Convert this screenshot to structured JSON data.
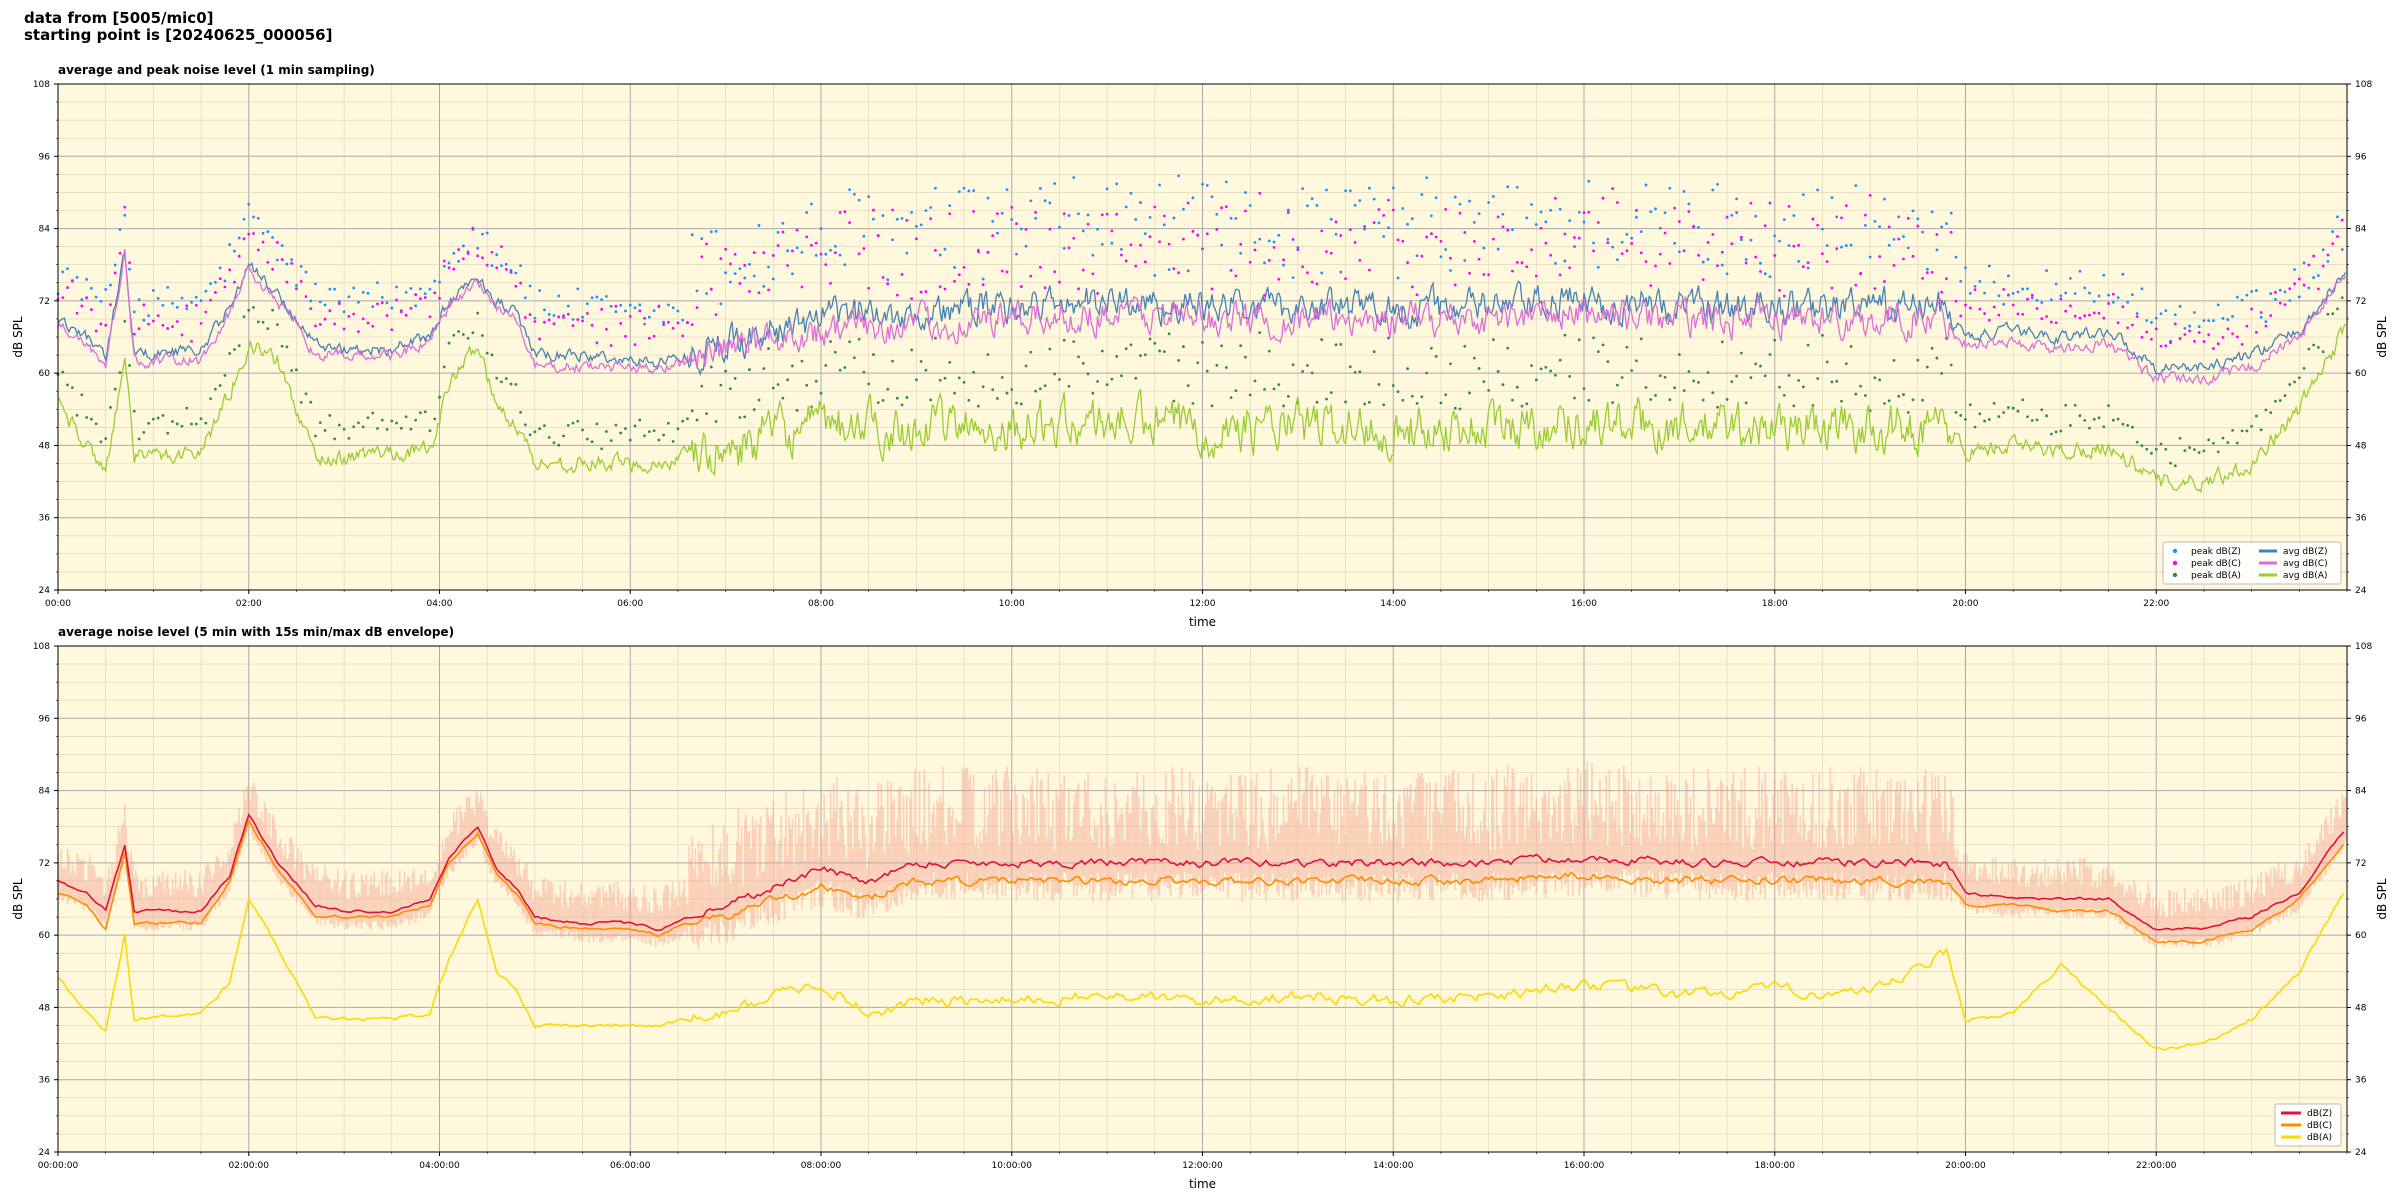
{
  "header": {
    "line1": "data from [5005/mic0]",
    "line2": "starting point is [20240625_000056]"
  },
  "colors": {
    "plot_bg": "#fff8dc",
    "grid_major": "#aaaaaa",
    "grid_minor": "#d9d2b8",
    "avg_z": "#4682b4",
    "avg_c": "#da70d6",
    "avg_a": "#9acd32",
    "peak_z": "#1e90ff",
    "peak_c": "#ff00ff",
    "peak_a": "#2e8b57",
    "env": "#f4a090",
    "z": "#dc143c",
    "c": "#ff8c00",
    "a": "#ffd700"
  },
  "chart_data": [
    {
      "type": "line",
      "title": "average and peak noise level (1 min sampling)",
      "xlabel": "time",
      "ylabel": "dB SPL",
      "xlim": [
        0,
        24
      ],
      "ylim": [
        24,
        108
      ],
      "yticks": [
        "24",
        "36",
        "48",
        "60",
        "72",
        "84",
        "96",
        "108"
      ],
      "xticks": [
        "00:00",
        "02:00",
        "04:00",
        "06:00",
        "08:00",
        "10:00",
        "12:00",
        "14:00",
        "16:00",
        "18:00",
        "20:00",
        "22:00"
      ],
      "grid": true,
      "legend_position": "bottom-right",
      "legend": [
        {
          "label": "peak dB(Z)",
          "kind": "dot",
          "color_key": "peak_z"
        },
        {
          "label": "peak dB(C)",
          "kind": "dot",
          "color_key": "peak_c"
        },
        {
          "label": "peak dB(A)",
          "kind": "dot",
          "color_key": "peak_a"
        },
        {
          "label": "avg dB(Z)",
          "kind": "line",
          "color_key": "avg_z"
        },
        {
          "label": "avg dB(C)",
          "kind": "line",
          "color_key": "avg_c"
        },
        {
          "label": "avg dB(A)",
          "kind": "line",
          "color_key": "avg_a"
        }
      ],
      "profile_hours": [
        0,
        0.3,
        0.5,
        0.7,
        0.8,
        1.5,
        1.8,
        2.0,
        2.3,
        2.7,
        3.0,
        3.5,
        3.9,
        4.1,
        4.4,
        4.6,
        4.8,
        5.0,
        5.5,
        6.0,
        6.3,
        6.6,
        7.0,
        7.5,
        8.0,
        8.5,
        9.0,
        10.0,
        11.0,
        12.0,
        13.0,
        14.0,
        15.0,
        16.0,
        17.0,
        18.0,
        19.0,
        19.8,
        20.0,
        20.5,
        21.0,
        21.5,
        22.0,
        22.5,
        23.0,
        23.5,
        24.0
      ],
      "series": [
        {
          "name": "avg dB(Z)",
          "color_key": "avg_z",
          "values": [
            69,
            66,
            63,
            80,
            63,
            64,
            71,
            78,
            73,
            65,
            64,
            64,
            66,
            72,
            76,
            72,
            70,
            63,
            63,
            62,
            62,
            63,
            65,
            67,
            69,
            70,
            70,
            71,
            72,
            71,
            71,
            71,
            71,
            72,
            71,
            71,
            71,
            71,
            66,
            67,
            66,
            67,
            61,
            61,
            63,
            67,
            77
          ]
        },
        {
          "name": "avg dB(C)",
          "color_key": "avg_c",
          "values": [
            68,
            65,
            61,
            80,
            62,
            62,
            70,
            77,
            72,
            63,
            63,
            63,
            65,
            71,
            75,
            71,
            69,
            61,
            61,
            61,
            61,
            62,
            64,
            66,
            67,
            68,
            68,
            69,
            70,
            69,
            69,
            69,
            69,
            70,
            69,
            69,
            69,
            69,
            65,
            65,
            64,
            65,
            59,
            59,
            61,
            66,
            77
          ]
        },
        {
          "name": "avg dB(A)",
          "color_key": "avg_a",
          "values": [
            55,
            48,
            44,
            62,
            46,
            47,
            57,
            65,
            62,
            46,
            46,
            47,
            47,
            58,
            65,
            54,
            52,
            45,
            45,
            45,
            45,
            46,
            47,
            50,
            51,
            51,
            51,
            51,
            52,
            51,
            51,
            51,
            51,
            52,
            51,
            51,
            51,
            51,
            47,
            48,
            47,
            48,
            42,
            42,
            45,
            54,
            68
          ]
        }
      ],
      "peak_series": [
        {
          "name": "peak dB(Z)",
          "color_key": "peak_z",
          "offset_db": 4
        },
        {
          "name": "peak dB(C)",
          "color_key": "peak_c",
          "offset_db": 3
        },
        {
          "name": "peak dB(A)",
          "color_key": "peak_a",
          "offset_db": 2
        }
      ]
    },
    {
      "type": "line",
      "title": "average noise level (5 min with 15s min/max dB envelope)",
      "xlabel": "time",
      "ylabel": "dB SPL",
      "xlim": [
        0,
        24
      ],
      "ylim": [
        24,
        108
      ],
      "yticks": [
        "24",
        "36",
        "48",
        "60",
        "72",
        "84",
        "96",
        "108"
      ],
      "xticks": [
        "00:00:00",
        "02:00:00",
        "04:00:00",
        "06:00:00",
        "08:00:00",
        "10:00:00",
        "12:00:00",
        "14:00:00",
        "16:00:00",
        "18:00:00",
        "20:00:00",
        "22:00:00"
      ],
      "grid": true,
      "legend_position": "bottom-right",
      "legend": [
        {
          "label": "dB(Z)",
          "kind": "line",
          "color_key": "z"
        },
        {
          "label": "dB(C)",
          "kind": "line",
          "color_key": "c"
        },
        {
          "label": "dB(A)",
          "kind": "line",
          "color_key": "a"
        }
      ],
      "profile_hours": [
        0,
        0.3,
        0.5,
        0.7,
        0.8,
        1.5,
        1.8,
        2.0,
        2.3,
        2.7,
        3.0,
        3.5,
        3.9,
        4.1,
        4.4,
        4.6,
        4.8,
        5.0,
        5.5,
        6.0,
        6.3,
        6.6,
        7.0,
        7.5,
        8.0,
        8.5,
        9.0,
        10.0,
        11.0,
        12.0,
        13.0,
        14.0,
        15.0,
        16.0,
        17.0,
        18.0,
        19.0,
        19.8,
        20.0,
        20.5,
        21.0,
        21.5,
        22.0,
        22.5,
        23.0,
        23.5,
        24.0
      ],
      "series": [
        {
          "name": "dB(Z)",
          "color_key": "z",
          "values": [
            69,
            67,
            64,
            75,
            64,
            64,
            70,
            80,
            72,
            65,
            64,
            64,
            66,
            73,
            78,
            71,
            68,
            63,
            62,
            62,
            61,
            63,
            65,
            68,
            71,
            69,
            72,
            72,
            72,
            72,
            72,
            72,
            72,
            73,
            72,
            72,
            72,
            72,
            67,
            66,
            66,
            66,
            61,
            61,
            63,
            67,
            78
          ]
        },
        {
          "name": "dB(C)",
          "color_key": "c",
          "values": [
            67,
            65,
            61,
            74,
            62,
            62,
            69,
            79,
            71,
            63,
            63,
            63,
            65,
            72,
            77,
            70,
            67,
            62,
            61,
            61,
            60,
            62,
            63,
            66,
            68,
            66,
            69,
            69,
            69,
            69,
            69,
            69,
            69,
            70,
            69,
            69,
            69,
            69,
            65,
            65,
            64,
            64,
            59,
            59,
            61,
            66,
            76
          ]
        },
        {
          "name": "dB(A)",
          "color_key": "a",
          "values": [
            53,
            47,
            44,
            60,
            46,
            47,
            52,
            66,
            58,
            46,
            46,
            46,
            47,
            56,
            66,
            54,
            51,
            45,
            45,
            45,
            45,
            46,
            47,
            50,
            52,
            47,
            49,
            49,
            50,
            49,
            50,
            49,
            50,
            52,
            50,
            51,
            50,
            57,
            46,
            47,
            55,
            48,
            41,
            42,
            46,
            54,
            68
          ]
        }
      ],
      "envelope": {
        "color_key": "env",
        "series_ref": "dB(Z)"
      }
    }
  ]
}
